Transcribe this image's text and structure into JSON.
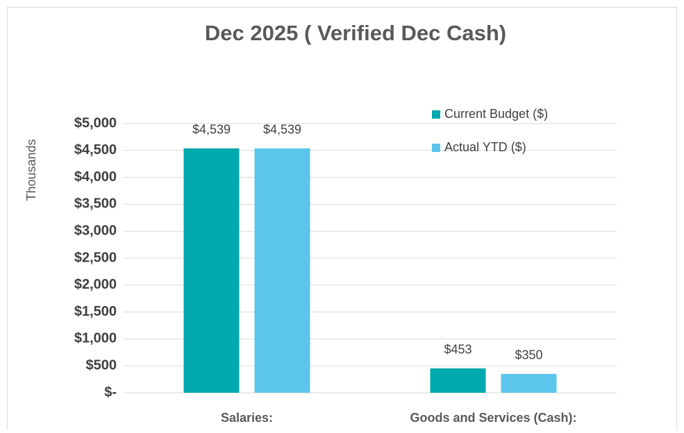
{
  "chart_data": {
    "type": "bar",
    "title": "Dec 2025 ( Verified Dec Cash)",
    "y_label": "Thousands",
    "categories": [
      "Salaries:",
      "Goods and Services (Cash):"
    ],
    "series": [
      {
        "name": "Current Budget ($)",
        "color": "#00a9ad",
        "values": [
          4539,
          453
        ],
        "value_labels": [
          "$4,539",
          "$453"
        ]
      },
      {
        "name": "Actual YTD ($)",
        "color": "#5bc5ea",
        "values": [
          4539,
          350
        ],
        "value_labels": [
          "$4,539",
          "$350"
        ]
      }
    ],
    "ylim": [
      0,
      5000
    ],
    "yticks": [
      {
        "value": 0,
        "label": "$-"
      },
      {
        "value": 500,
        "label": "$500"
      },
      {
        "value": 1000,
        "label": "$1,000"
      },
      {
        "value": 1500,
        "label": "$1,500"
      },
      {
        "value": 2000,
        "label": "$2,000"
      },
      {
        "value": 2500,
        "label": "$2,500"
      },
      {
        "value": 3000,
        "label": "$3,000"
      },
      {
        "value": 3500,
        "label": "$3,500"
      },
      {
        "value": 4000,
        "label": "$4,000"
      },
      {
        "value": 4500,
        "label": "$4,500"
      },
      {
        "value": 5000,
        "label": "$5,000"
      }
    ],
    "grid": true,
    "legend": "upper right"
  }
}
